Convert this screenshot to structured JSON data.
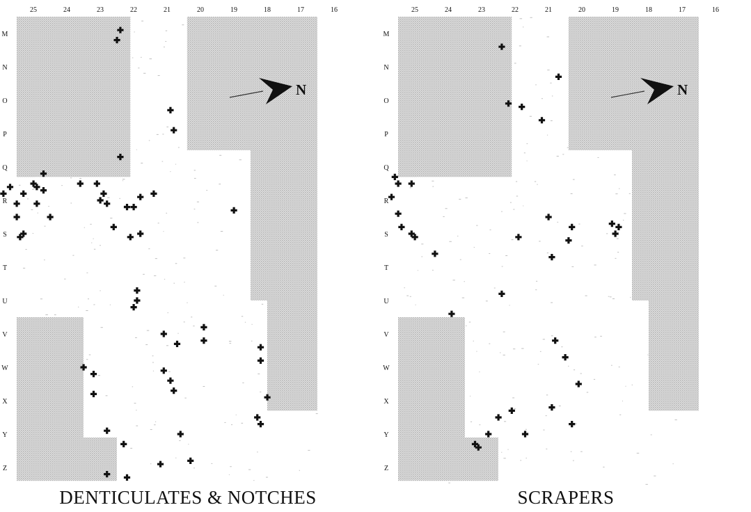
{
  "columns": [
    "25",
    "24",
    "23",
    "22",
    "21",
    "20",
    "19",
    "18",
    "17",
    "16"
  ],
  "rows": [
    "M",
    "N",
    "O",
    "P",
    "Q",
    "R",
    "S",
    "T",
    "U",
    "V",
    "W",
    "X",
    "Y",
    "Z"
  ],
  "north_label": "N",
  "colors": {
    "shade": "#c9c9c9",
    "mark": "#111111",
    "speck": "#8a8a8a"
  },
  "panels": [
    {
      "caption": "DENTICULATES & NOTCHES",
      "finds": [
        [
          21.9,
          0.4
        ],
        [
          22.0,
          0.7
        ],
        [
          20.4,
          2.8
        ],
        [
          20.3,
          3.4
        ],
        [
          21.9,
          4.2
        ],
        [
          24.2,
          4.7
        ],
        [
          24.5,
          5.0
        ],
        [
          24.4,
          5.1
        ],
        [
          24.2,
          5.2
        ],
        [
          25.2,
          5.1
        ],
        [
          24.8,
          5.3
        ],
        [
          25.0,
          5.6
        ],
        [
          25.4,
          5.3
        ],
        [
          24.4,
          5.6
        ],
        [
          23.1,
          5.0
        ],
        [
          22.6,
          5.0
        ],
        [
          22.4,
          5.3
        ],
        [
          22.5,
          5.5
        ],
        [
          22.3,
          5.6
        ],
        [
          21.7,
          5.7
        ],
        [
          21.5,
          5.7
        ],
        [
          21.3,
          5.4
        ],
        [
          20.9,
          5.3
        ],
        [
          18.5,
          5.8
        ],
        [
          24.0,
          6.0
        ],
        [
          24.8,
          6.5
        ],
        [
          24.9,
          6.6
        ],
        [
          25.0,
          6.0
        ],
        [
          22.1,
          6.3
        ],
        [
          21.6,
          6.6
        ],
        [
          21.3,
          6.5
        ],
        [
          21.4,
          8.2
        ],
        [
          21.4,
          8.5
        ],
        [
          21.5,
          8.7
        ],
        [
          20.6,
          9.5
        ],
        [
          19.4,
          9.3
        ],
        [
          19.4,
          9.7
        ],
        [
          20.2,
          9.8
        ],
        [
          17.7,
          9.9
        ],
        [
          17.7,
          10.3
        ],
        [
          23.0,
          10.5
        ],
        [
          22.7,
          10.7
        ],
        [
          22.7,
          11.3
        ],
        [
          20.6,
          10.6
        ],
        [
          20.4,
          10.9
        ],
        [
          20.3,
          11.2
        ],
        [
          17.5,
          11.4
        ],
        [
          17.8,
          12.0
        ],
        [
          17.7,
          12.2
        ],
        [
          20.1,
          12.5
        ],
        [
          21.8,
          12.8
        ],
        [
          22.3,
          12.4
        ],
        [
          19.8,
          13.3
        ],
        [
          22.3,
          13.7
        ],
        [
          21.7,
          13.8
        ],
        [
          20.7,
          13.4
        ]
      ]
    },
    {
      "caption": "SCRAPERS",
      "finds": [
        [
          21.9,
          0.9
        ],
        [
          20.2,
          1.8
        ],
        [
          21.3,
          2.7
        ],
        [
          21.7,
          2.6
        ],
        [
          20.7,
          3.1
        ],
        [
          25.1,
          4.8
        ],
        [
          25.0,
          5.0
        ],
        [
          24.6,
          5.0
        ],
        [
          25.2,
          5.4
        ],
        [
          25.0,
          5.9
        ],
        [
          24.9,
          6.3
        ],
        [
          24.6,
          6.5
        ],
        [
          24.5,
          6.6
        ],
        [
          23.9,
          7.1
        ],
        [
          21.4,
          6.6
        ],
        [
          20.5,
          6.0
        ],
        [
          19.8,
          6.3
        ],
        [
          19.9,
          6.7
        ],
        [
          18.6,
          6.2
        ],
        [
          18.4,
          6.3
        ],
        [
          18.5,
          6.5
        ],
        [
          20.4,
          7.2
        ],
        [
          23.4,
          8.9
        ],
        [
          21.9,
          8.3
        ],
        [
          20.3,
          9.7
        ],
        [
          20.0,
          10.2
        ],
        [
          19.6,
          11.0
        ],
        [
          20.4,
          11.7
        ],
        [
          21.6,
          11.8
        ],
        [
          22.0,
          12.0
        ],
        [
          22.3,
          12.5
        ],
        [
          22.7,
          12.8
        ],
        [
          22.6,
          12.9
        ],
        [
          19.8,
          12.2
        ],
        [
          21.2,
          12.5
        ]
      ]
    }
  ]
}
